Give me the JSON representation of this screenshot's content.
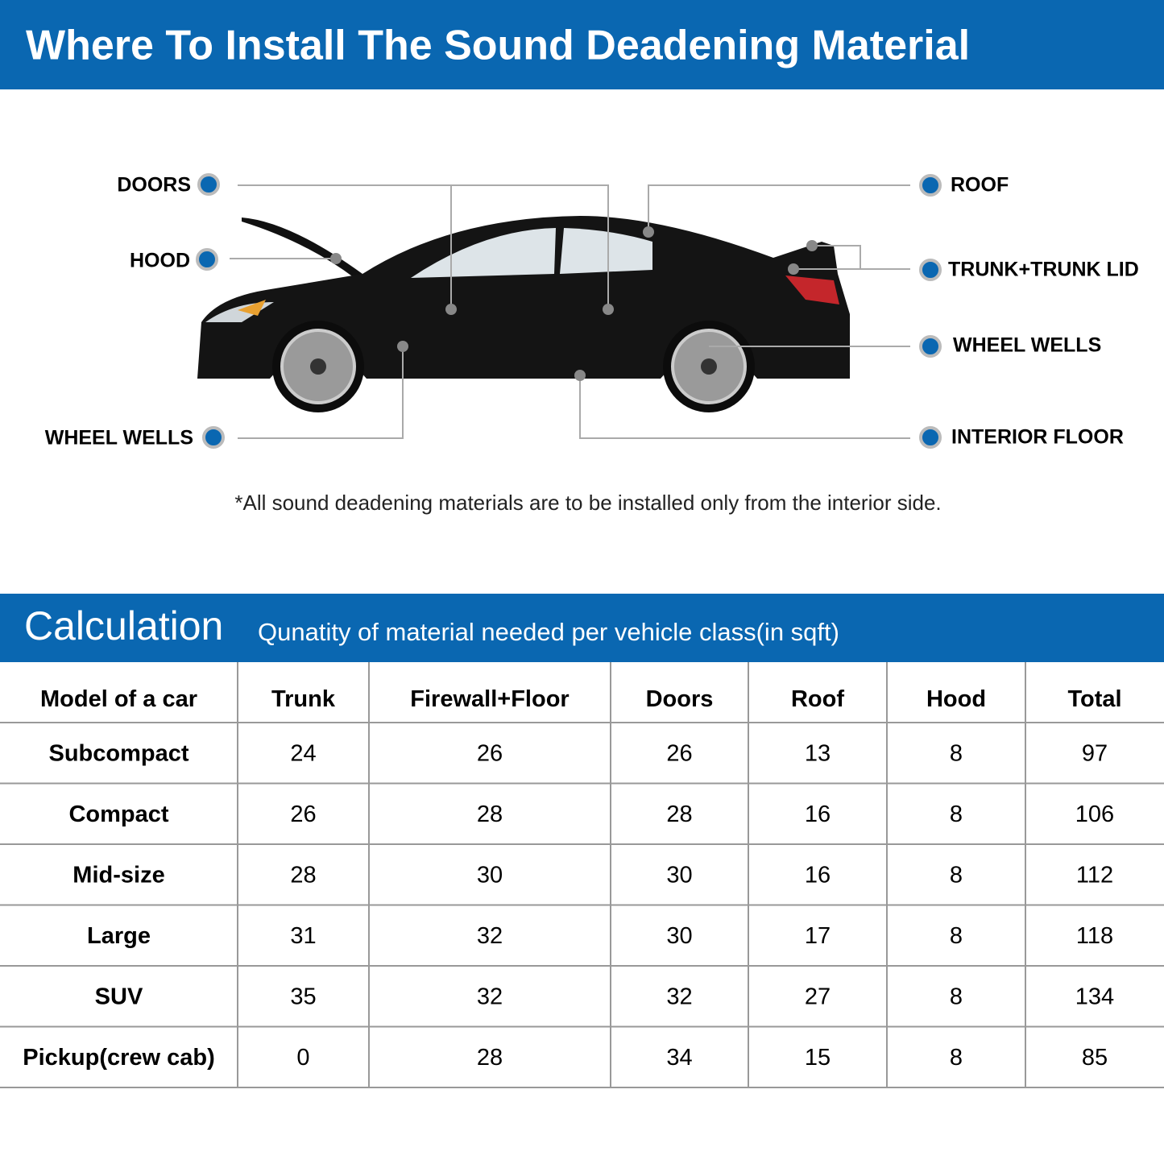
{
  "header": {
    "title": "Where To Install The Sound Deadening Material"
  },
  "diagram": {
    "labels": [
      "DOORS",
      "HOOD",
      "WHEEL WELLS",
      "ROOF",
      "TRUNK+TRUNK LID",
      "WHEEL WELLS",
      "INTERIOR FLOOR"
    ],
    "note": "*All sound deadening materials are to be installed only from the interior side."
  },
  "calculation": {
    "title": "Calculation",
    "subtitle": "Qunatity of material needed per vehicle class(in sqft)"
  },
  "table": {
    "columns": [
      "Model of a car",
      "Trunk",
      "Firewall+Floor",
      "Doors",
      "Roof",
      "Hood",
      "Total"
    ],
    "rows": [
      [
        "Subcompact",
        24,
        26,
        26,
        13,
        8,
        97
      ],
      [
        "Compact",
        26,
        28,
        28,
        16,
        8,
        106
      ],
      [
        "Mid-size",
        28,
        30,
        30,
        16,
        8,
        112
      ],
      [
        "Large",
        31,
        32,
        30,
        17,
        8,
        118
      ],
      [
        "SUV",
        35,
        32,
        32,
        27,
        8,
        134
      ],
      [
        "Pickup(crew cab)",
        0,
        28,
        34,
        15,
        8,
        85
      ]
    ]
  }
}
